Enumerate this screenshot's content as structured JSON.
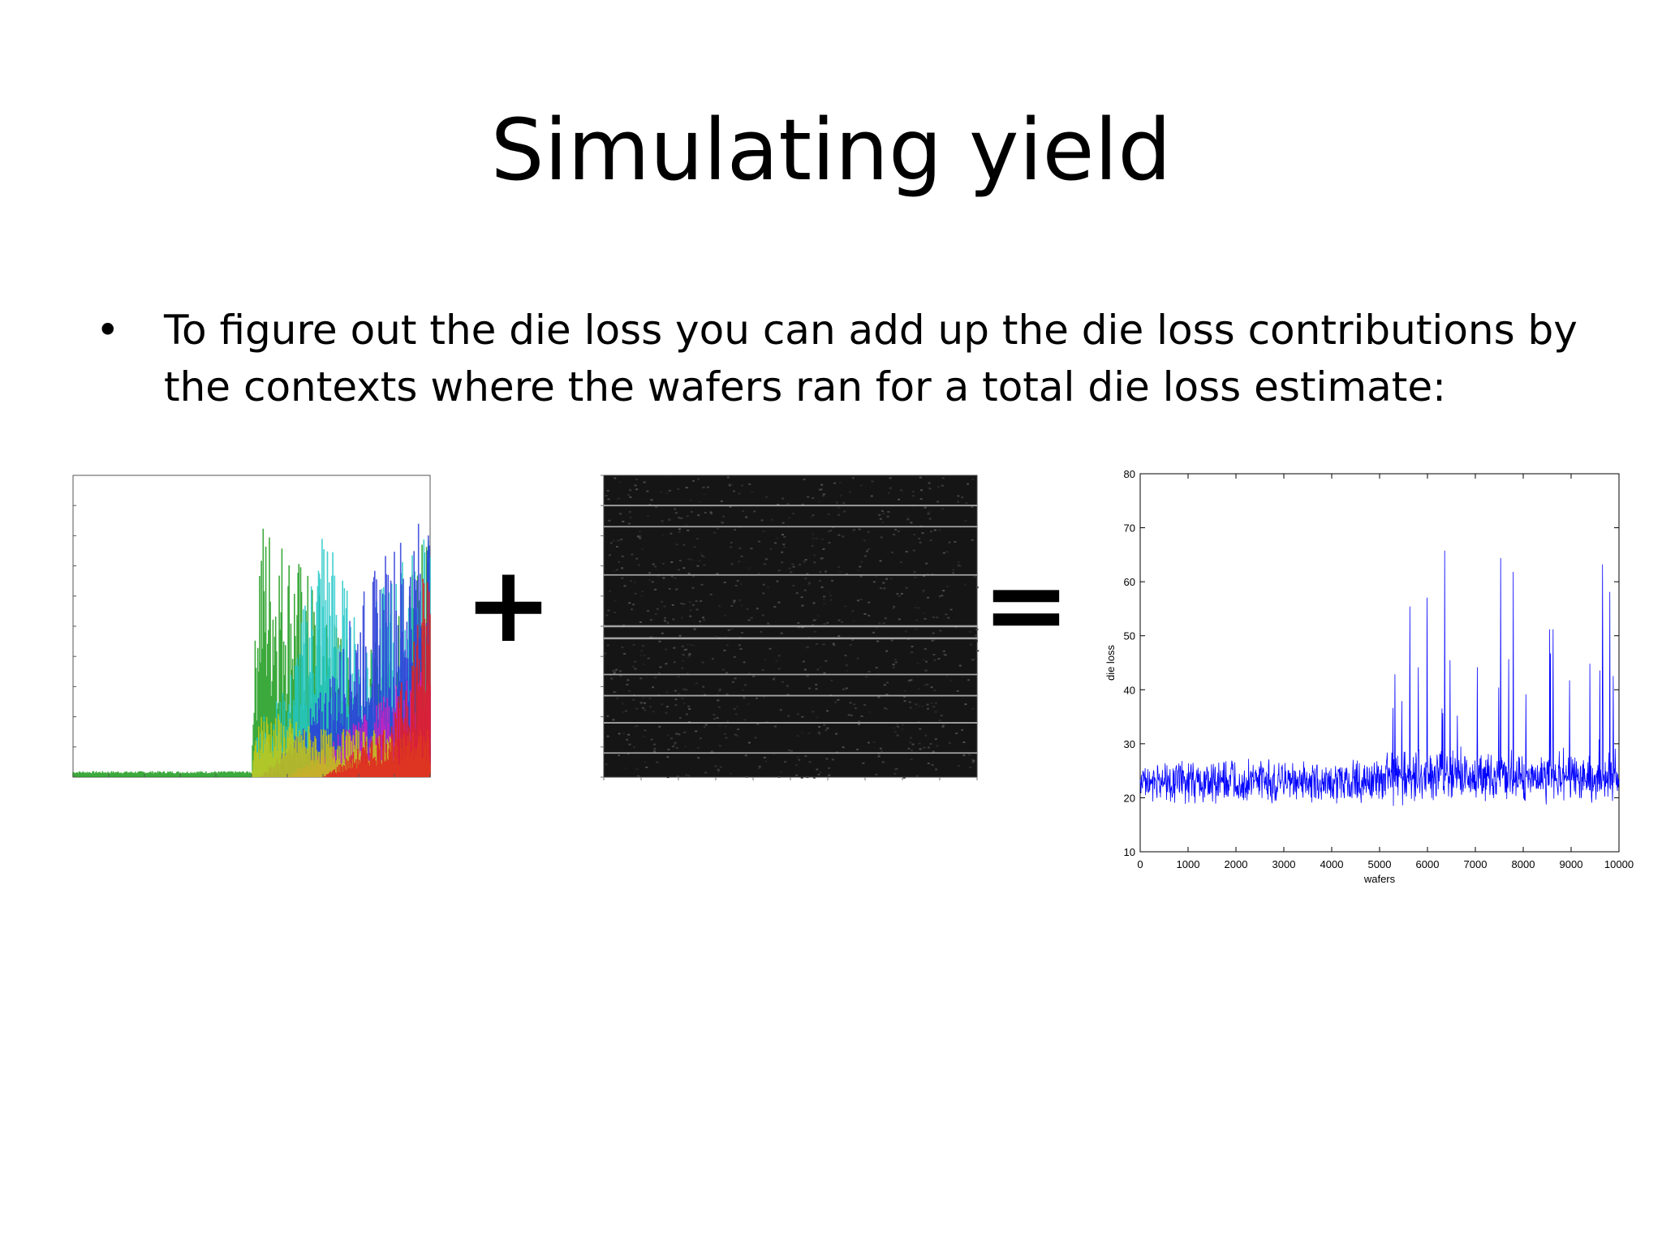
{
  "slide": {
    "title": "Simulating yield",
    "bullet": "To figure out the die loss you can add up the die loss contributions by the contexts where the wafers ran for a total die loss estimate:",
    "bullet_marker": "•",
    "plus": "+",
    "equals": "="
  },
  "chart_data": [
    {
      "type": "area",
      "panel": "contributions-chart",
      "x": [
        0,
        5000,
        5200,
        6000,
        7000,
        8000,
        9000,
        10000
      ],
      "xlim": [
        0,
        10000
      ],
      "ylim": [
        0,
        50
      ],
      "series": [
        {
          "values": [
            1,
            1,
            45,
            40,
            30,
            20,
            25,
            48
          ],
          "color": "#1a9a1a"
        },
        {
          "values": [
            0,
            0,
            10,
            15,
            45,
            25,
            35,
            42
          ],
          "color": "#22c7c7"
        },
        {
          "values": [
            0,
            0,
            0,
            5,
            15,
            30,
            40,
            45
          ],
          "color": "#2a3ad8"
        },
        {
          "values": [
            0,
            0,
            0,
            0,
            5,
            10,
            15,
            20
          ],
          "color": "#d020c0"
        },
        {
          "values": [
            0,
            0,
            12,
            10,
            8,
            8,
            8,
            8
          ],
          "color": "#c8c810"
        },
        {
          "values": [
            0,
            0,
            0,
            0,
            0,
            5,
            10,
            40
          ],
          "color": "#e02020"
        }
      ]
    },
    {
      "type": "heatmap",
      "panel": "context-heatmap",
      "description_lines_at_fraction": [
        0.1,
        0.17,
        0.33,
        0.5,
        0.54,
        0.66,
        0.73,
        0.82,
        0.92
      ]
    },
    {
      "type": "line",
      "panel": "die-loss-chart",
      "xlabel": "wafers",
      "ylabel": "die loss",
      "xlim": [
        0,
        10000
      ],
      "ylim": [
        10,
        80
      ],
      "xticks": [
        0,
        1000,
        2000,
        3000,
        4000,
        5000,
        6000,
        7000,
        8000,
        9000,
        10000
      ],
      "yticks": [
        10,
        20,
        30,
        40,
        50,
        60,
        70,
        80
      ],
      "baseline": 23,
      "noise": 3,
      "spike_start": 5000,
      "color": "#0000ff"
    }
  ]
}
